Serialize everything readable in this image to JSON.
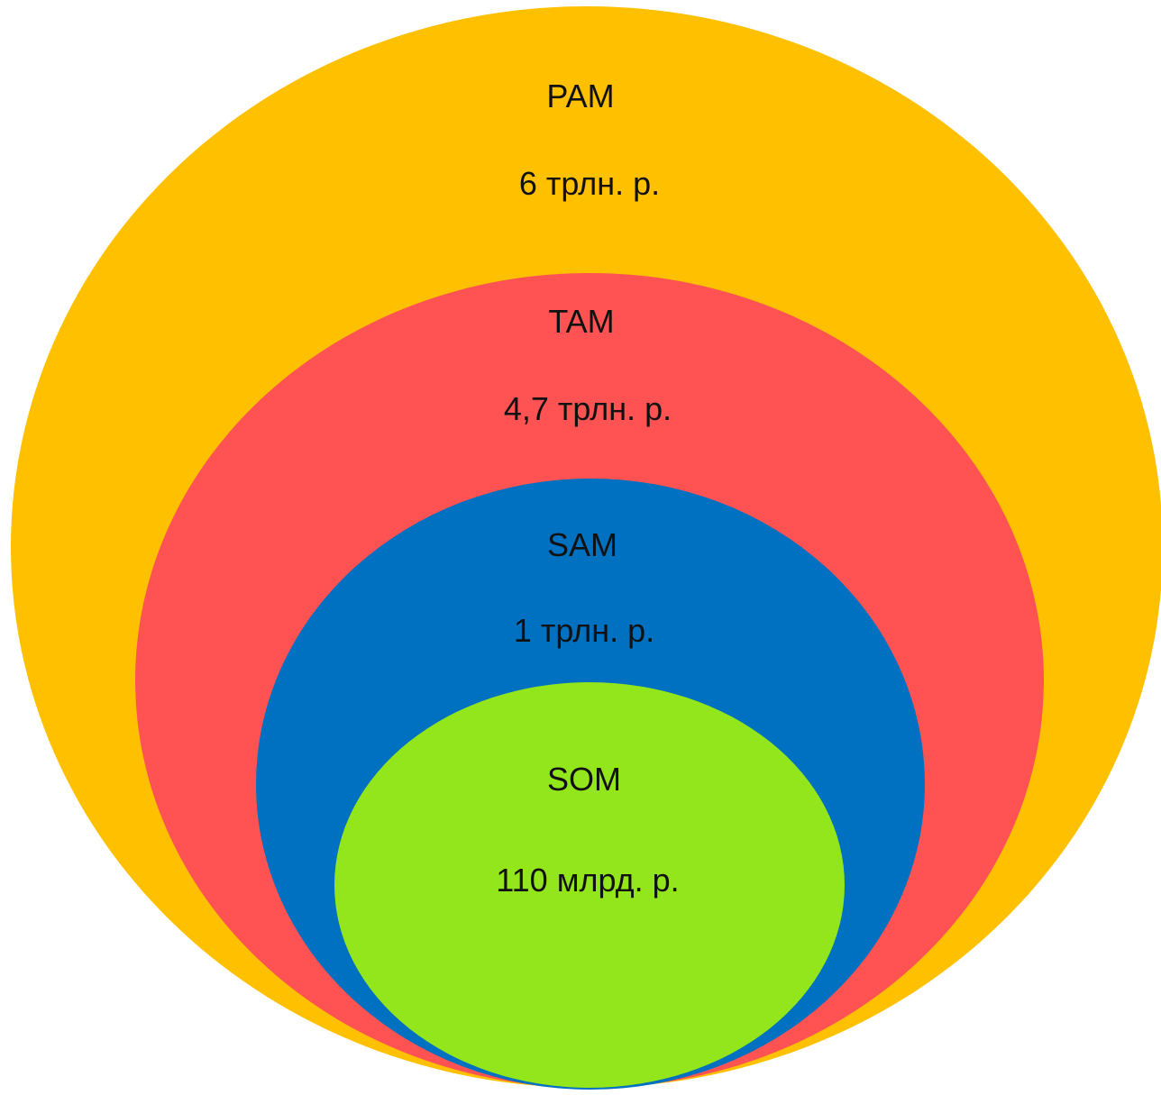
{
  "levels": [
    {
      "id": "pam",
      "name": "PAM",
      "value": "6 трлн. р.",
      "color": "#FFC000"
    },
    {
      "id": "tam",
      "name": "TAM",
      "value": "4,7 трлн. р.",
      "color": "#FF5353"
    },
    {
      "id": "sam",
      "name": "SAM",
      "value": "1 трлн. р.",
      "color": "#0070C0"
    },
    {
      "id": "som",
      "name": "SOM",
      "value": "110 млрд. р.",
      "color": "#92E61B"
    }
  ]
}
